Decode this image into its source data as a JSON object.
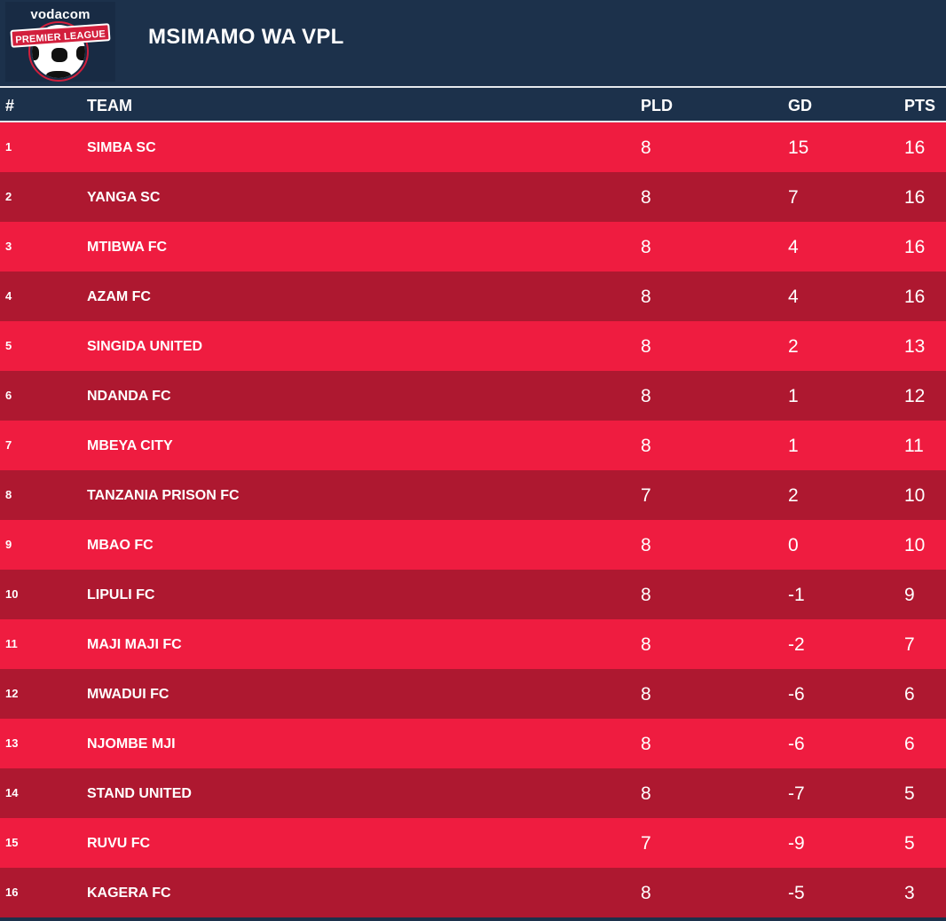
{
  "header": {
    "logo_top": "vodacom",
    "logo_banner": "PREMIER LEAGUE",
    "title": "MSIMAMO WA VPL"
  },
  "table": {
    "columns": {
      "pos": "#",
      "team": "TEAM",
      "pld": "PLD",
      "gd": "GD",
      "pts": "PTS"
    },
    "rows": [
      {
        "pos": "1",
        "team": "SIMBA SC",
        "pld": "8",
        "gd": "15",
        "pts": "16"
      },
      {
        "pos": "2",
        "team": "YANGA SC",
        "pld": "8",
        "gd": "7",
        "pts": "16"
      },
      {
        "pos": "3",
        "team": "MTIBWA FC",
        "pld": "8",
        "gd": "4",
        "pts": "16"
      },
      {
        "pos": "4",
        "team": "AZAM FC",
        "pld": "8",
        "gd": "4",
        "pts": "16"
      },
      {
        "pos": "5",
        "team": "SINGIDA UNITED",
        "pld": "8",
        "gd": "2",
        "pts": "13"
      },
      {
        "pos": "6",
        "team": "NDANDA FC",
        "pld": "8",
        "gd": "1",
        "pts": "12"
      },
      {
        "pos": "7",
        "team": "MBEYA CITY",
        "pld": "8",
        "gd": "1",
        "pts": "11"
      },
      {
        "pos": "8",
        "team": "TANZANIA PRISON FC",
        "pld": "7",
        "gd": "2",
        "pts": "10"
      },
      {
        "pos": "9",
        "team": "MBAO FC",
        "pld": "8",
        "gd": "0",
        "pts": "10"
      },
      {
        "pos": "10",
        "team": "LIPULI FC",
        "pld": "8",
        "gd": "-1",
        "pts": "9"
      },
      {
        "pos": "11",
        "team": "MAJI MAJI FC",
        "pld": "8",
        "gd": "-2",
        "pts": "7"
      },
      {
        "pos": "12",
        "team": "MWADUI FC",
        "pld": "8",
        "gd": "-6",
        "pts": "6"
      },
      {
        "pos": "13",
        "team": "NJOMBE MJI",
        "pld": "8",
        "gd": "-6",
        "pts": "6"
      },
      {
        "pos": "14",
        "team": "STAND UNITED",
        "pld": "8",
        "gd": "-7",
        "pts": "5"
      },
      {
        "pos": "15",
        "team": "RUVU FC",
        "pld": "7",
        "gd": "-9",
        "pts": "5"
      },
      {
        "pos": "16",
        "team": "KAGERA FC",
        "pld": "8",
        "gd": "-5",
        "pts": "3"
      }
    ]
  },
  "colors": {
    "header_bg": "#1c314b",
    "row_light": "#ef1c40",
    "row_dark": "#ae1830"
  }
}
